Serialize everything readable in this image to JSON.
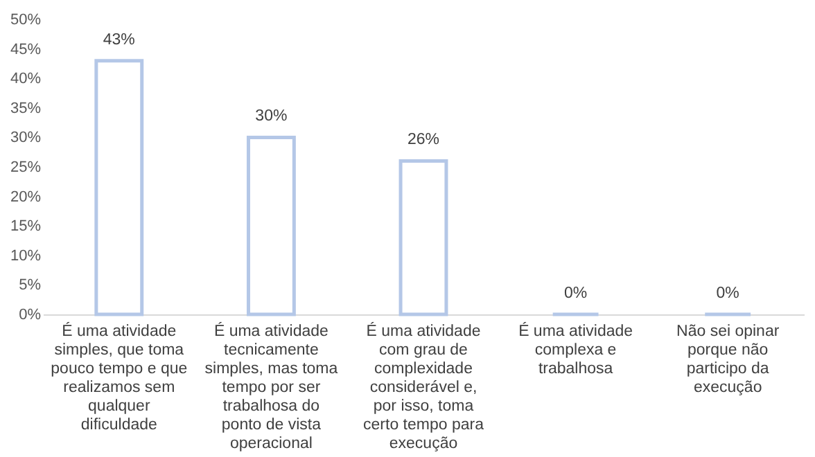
{
  "chart_data": {
    "type": "bar",
    "categories": [
      "É uma atividade simples, que toma pouco tempo e que realizamos sem qualquer dificuldade",
      "É uma atividade tecnicamente simples, mas toma tempo por ser trabalhosa do ponto de vista operacional",
      "É uma atividade com grau de complexidade considerável e, por isso, toma certo tempo para execução",
      "É uma atividade complexa e trabalhosa",
      "Não sei opinar porque não participo da execução"
    ],
    "values": [
      43,
      30,
      26,
      0,
      0
    ],
    "value_labels": [
      "43%",
      "30%",
      "26%",
      "0%",
      "0%"
    ],
    "color": "#b4c7e7",
    "ylim": [
      0,
      50
    ],
    "yticks": [
      {
        "value": 0,
        "label": "0%"
      },
      {
        "value": 5,
        "label": "5%"
      },
      {
        "value": 10,
        "label": "10%"
      },
      {
        "value": 15,
        "label": "15%"
      },
      {
        "value": 20,
        "label": "20%"
      },
      {
        "value": 25,
        "label": "25%"
      },
      {
        "value": 30,
        "label": "30%"
      },
      {
        "value": 35,
        "label": "35%"
      },
      {
        "value": 40,
        "label": "40%"
      },
      {
        "value": 45,
        "label": "45%"
      },
      {
        "value": 50,
        "label": "50%"
      }
    ],
    "grid": false
  }
}
